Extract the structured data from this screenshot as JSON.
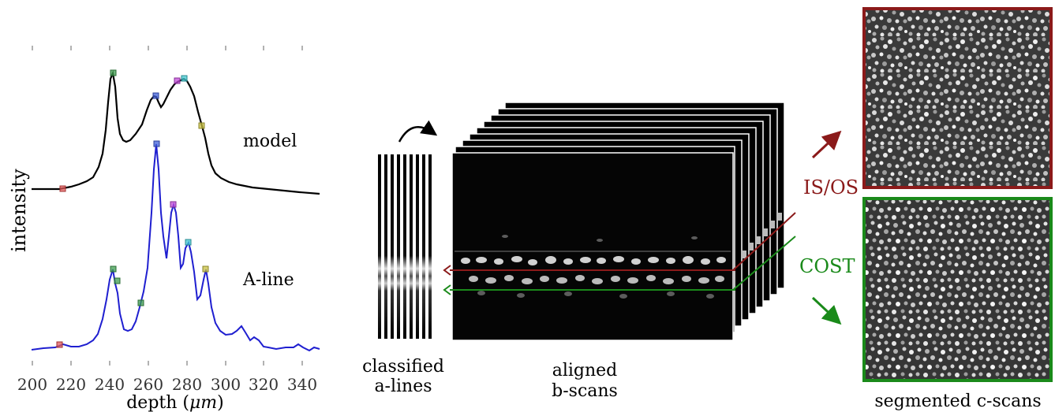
{
  "plot": {
    "ylabel": "intensity",
    "xlabel_main": "depth (",
    "xlabel_unit": "μm",
    "xlabel_close": ")",
    "x_ticks": [
      "200",
      "220",
      "240",
      "260",
      "280",
      "300",
      "320",
      "340"
    ],
    "model_label": "model",
    "aline_label": "A-line",
    "colors": {
      "model_curve": "#000000",
      "aline_curve": "#1f1fd0"
    },
    "marker_colors": [
      "#e05a5a",
      "#3f9d4f",
      "#3f5fd8",
      "#c24ad8",
      "#40c8d0",
      "#c8c040"
    ]
  },
  "labels": {
    "classified_line1": "classified",
    "classified_line2": "a-lines",
    "aligned_line1": "aligned",
    "aligned_line2": "b-scans",
    "isos": "IS/OS",
    "cost": "COST",
    "segmented": "segmented c-scans"
  },
  "colors": {
    "isos": "#8b1a1a",
    "cost": "#1a8a1a",
    "stack_bg": "#000000"
  }
}
